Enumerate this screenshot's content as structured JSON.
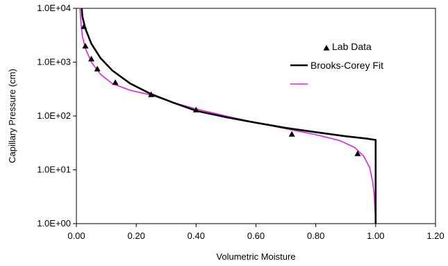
{
  "chart_data": {
    "type": "scatter",
    "xlabel": "Volumetric Moisture",
    "ylabel": "Capillary Pressure (cm)",
    "xlim": [
      0,
      1.2
    ],
    "ylim": [
      1,
      10000
    ],
    "y_scale": "log",
    "grid": false,
    "legend_position": "top-right",
    "x_ticks": [
      "0.00",
      "0.20",
      "0.40",
      "0.60",
      "0.80",
      "1.00",
      "1.20"
    ],
    "y_ticks": [
      "1.0E+00",
      "1.0E+01",
      "1.0E+02",
      "1.0E+03",
      "1.0E+04"
    ],
    "series": [
      {
        "name": "Lab Data",
        "kind": "markers",
        "marker": "triangle",
        "color": "#000000",
        "points": [
          [
            0.025,
            4600
          ],
          [
            0.03,
            2000
          ],
          [
            0.05,
            1150
          ],
          [
            0.07,
            750
          ],
          [
            0.13,
            420
          ],
          [
            0.25,
            250
          ],
          [
            0.4,
            130
          ],
          [
            0.72,
            46
          ],
          [
            0.94,
            20
          ]
        ]
      },
      {
        "name": "Brooks-Corey Fit",
        "kind": "line",
        "color": "#000000",
        "points": [
          [
            0.018,
            10000
          ],
          [
            0.02,
            7000
          ],
          [
            0.03,
            4200
          ],
          [
            0.05,
            2200
          ],
          [
            0.08,
            1200
          ],
          [
            0.12,
            700
          ],
          [
            0.18,
            400
          ],
          [
            0.25,
            255
          ],
          [
            0.32,
            180
          ],
          [
            0.4,
            125
          ],
          [
            0.5,
            95
          ],
          [
            0.6,
            75
          ],
          [
            0.7,
            60
          ],
          [
            0.8,
            50
          ],
          [
            0.9,
            42
          ],
          [
            0.97,
            38
          ],
          [
            0.998,
            36
          ],
          [
            1.0,
            36
          ],
          [
            1.0,
            1
          ]
        ]
      },
      {
        "name": "",
        "kind": "line",
        "color": "#e020e0",
        "points": [
          [
            0.012,
            10000
          ],
          [
            0.015,
            5500
          ],
          [
            0.02,
            3000
          ],
          [
            0.03,
            1800
          ],
          [
            0.05,
            1000
          ],
          [
            0.08,
            600
          ],
          [
            0.12,
            400
          ],
          [
            0.18,
            300
          ],
          [
            0.25,
            245
          ],
          [
            0.32,
            180
          ],
          [
            0.4,
            135
          ],
          [
            0.5,
            100
          ],
          [
            0.6,
            75
          ],
          [
            0.7,
            58
          ],
          [
            0.8,
            45
          ],
          [
            0.88,
            35
          ],
          [
            0.93,
            26
          ],
          [
            0.96,
            18
          ],
          [
            0.98,
            11
          ],
          [
            0.99,
            6
          ],
          [
            0.995,
            3.5
          ],
          [
            0.999,
            1.3
          ],
          [
            1.0,
            1
          ]
        ]
      }
    ]
  }
}
